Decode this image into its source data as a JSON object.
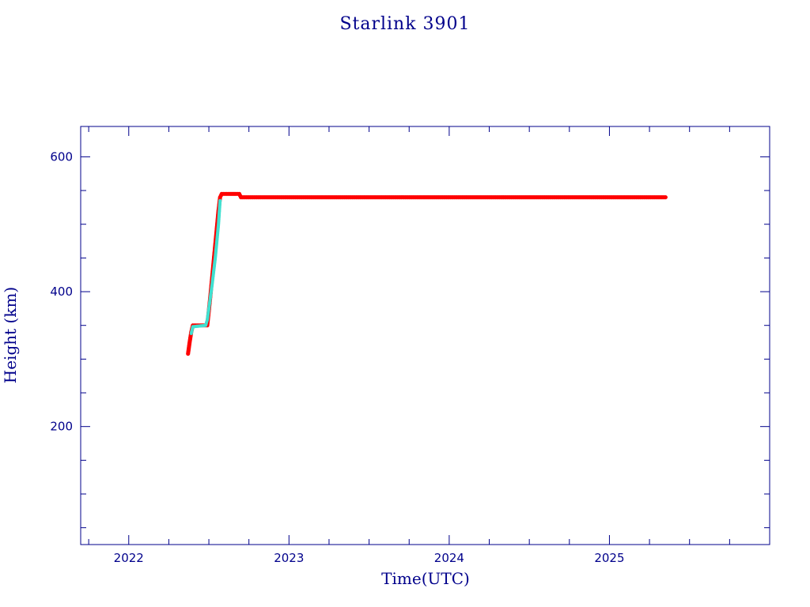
{
  "chart_data": {
    "type": "scatter",
    "title": "Starlink 3901",
    "xlabel": "Time(UTC)",
    "ylabel": "Height (km)",
    "xlim": [
      2021.7,
      2026.0
    ],
    "ylim": [
      25,
      645
    ],
    "x_major_ticks": [
      2022,
      2023,
      2024,
      2025
    ],
    "x_minor_step": 0.25,
    "y_major_ticks": [
      200,
      400,
      600
    ],
    "y_minor_step": 50,
    "grid": false,
    "legend": "none",
    "series": [
      {
        "color": "#ff0000",
        "marker": "dot",
        "x": [
          2022.37,
          2022.38,
          2022.39,
          2022.4,
          2022.41,
          2022.43,
          2022.45,
          2022.47,
          2022.49,
          2022.5,
          2022.51,
          2022.52,
          2022.53,
          2022.54,
          2022.55,
          2022.56,
          2022.57,
          2022.58,
          2022.6,
          2022.63,
          2022.67,
          2022.69,
          2022.7,
          2022.75,
          2022.85,
          2023.0,
          2023.25,
          2023.5,
          2023.75,
          2024.0,
          2024.25,
          2024.5,
          2024.75,
          2025.0,
          2025.2,
          2025.35
        ],
        "y": [
          308,
          325,
          340,
          350,
          350,
          350,
          350,
          350,
          350,
          372,
          395,
          420,
          445,
          470,
          495,
          520,
          540,
          545,
          545,
          545,
          545,
          545,
          540,
          540,
          540,
          540,
          540,
          540,
          540,
          540,
          540,
          540,
          540,
          540,
          540,
          540
        ]
      },
      {
        "color": "#40e0d0",
        "marker": "dot",
        "x": [
          2022.39,
          2022.4,
          2022.48,
          2022.49,
          2022.5,
          2022.52,
          2022.54,
          2022.56,
          2022.57
        ],
        "y": [
          338,
          348,
          350,
          358,
          375,
          410,
          450,
          500,
          535
        ]
      }
    ]
  }
}
